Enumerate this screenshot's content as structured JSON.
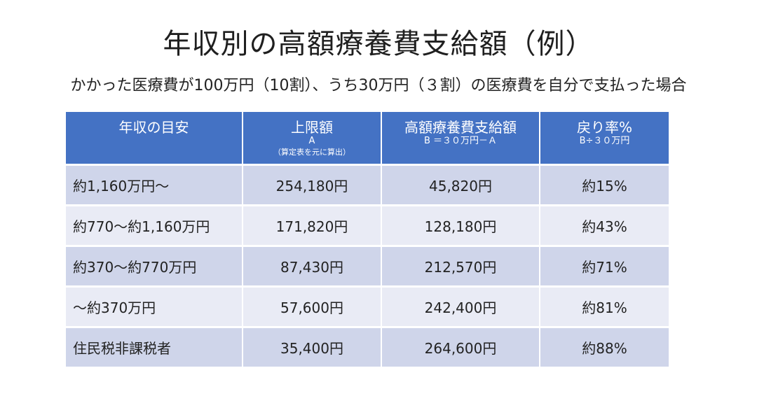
{
  "title": "年収別の高額療養費支給額（例）",
  "subtitle": "かかった医療費が100万円（10割）、うち30万円（３割）の医療費を自分で支払った場合",
  "table": {
    "headers": [
      {
        "main": "年収の目安",
        "sub": "",
        "note": ""
      },
      {
        "main": "上限額",
        "sub": "A",
        "note": "（算定表を元に算出）"
      },
      {
        "main": "高額療養費支給額",
        "sub": "B ＝３０万円－Ａ",
        "note": ""
      },
      {
        "main": "戻り率%",
        "sub": "B÷３０万円",
        "note": ""
      }
    ],
    "rows": [
      {
        "income": "約1,160万円～",
        "limit": "254,180円",
        "benefit": "45,820円",
        "rate": "約15%"
      },
      {
        "income": "約770～約1,160万円",
        "limit": "171,820円",
        "benefit": "128,180円",
        "rate": "約43%"
      },
      {
        "income": "約370～約770万円",
        "limit": "87,430円",
        "benefit": "212,570円",
        "rate": "約71%"
      },
      {
        "income": "～約370万円",
        "limit": "57,600円",
        "benefit": "242,400円",
        "rate": "約81%"
      },
      {
        "income": "住民税非課税者",
        "limit": "35,400円",
        "benefit": "264,600円",
        "rate": "約88%"
      }
    ]
  },
  "colors": {
    "header_bg": "#4472c4",
    "row_dark": "#cfd5ea",
    "row_light": "#e9ebf5"
  }
}
